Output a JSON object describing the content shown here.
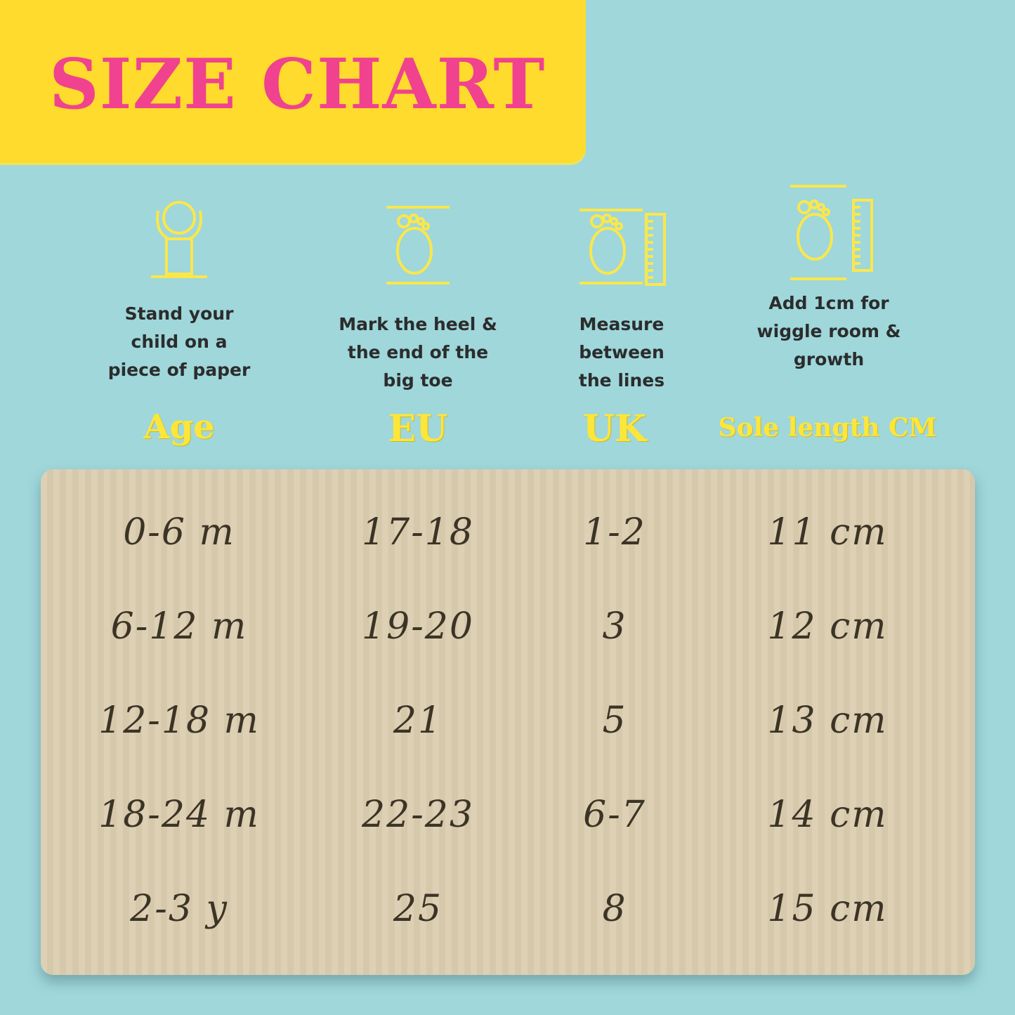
{
  "title": "SIZE CHART",
  "colors": {
    "background": "#9fd7db",
    "banner": "#fedb2c",
    "title": "#f0428f",
    "heading": "#fde63a",
    "table": "#ddd0b4"
  },
  "steps": [
    {
      "icon": "child-standing-icon",
      "text": [
        "Stand your",
        "child on a",
        "piece of paper"
      ]
    },
    {
      "icon": "foot-marked-icon",
      "text": [
        "Mark the heel &",
        "the end of the",
        "big toe"
      ]
    },
    {
      "icon": "foot-ruler-icon",
      "text": [
        "Measure",
        "between",
        "the lines"
      ]
    },
    {
      "icon": "foot-ruler-extra-icon",
      "text": [
        "Add 1cm for",
        "wiggle room &",
        "growth"
      ]
    }
  ],
  "chart_data": {
    "type": "table",
    "columns": [
      "Age",
      "EU",
      "UK",
      "Sole length CM"
    ],
    "rows": [
      [
        "0-6 m",
        "17-18",
        "1-2",
        "11 cm"
      ],
      [
        "6-12 m",
        "19-20",
        "3",
        "12 cm"
      ],
      [
        "12-18 m",
        "21",
        "5",
        "13 cm"
      ],
      [
        "18-24 m",
        "22-23",
        "6-7",
        "14 cm"
      ],
      [
        "2-3 y",
        "25",
        "8",
        "15 cm"
      ]
    ]
  }
}
